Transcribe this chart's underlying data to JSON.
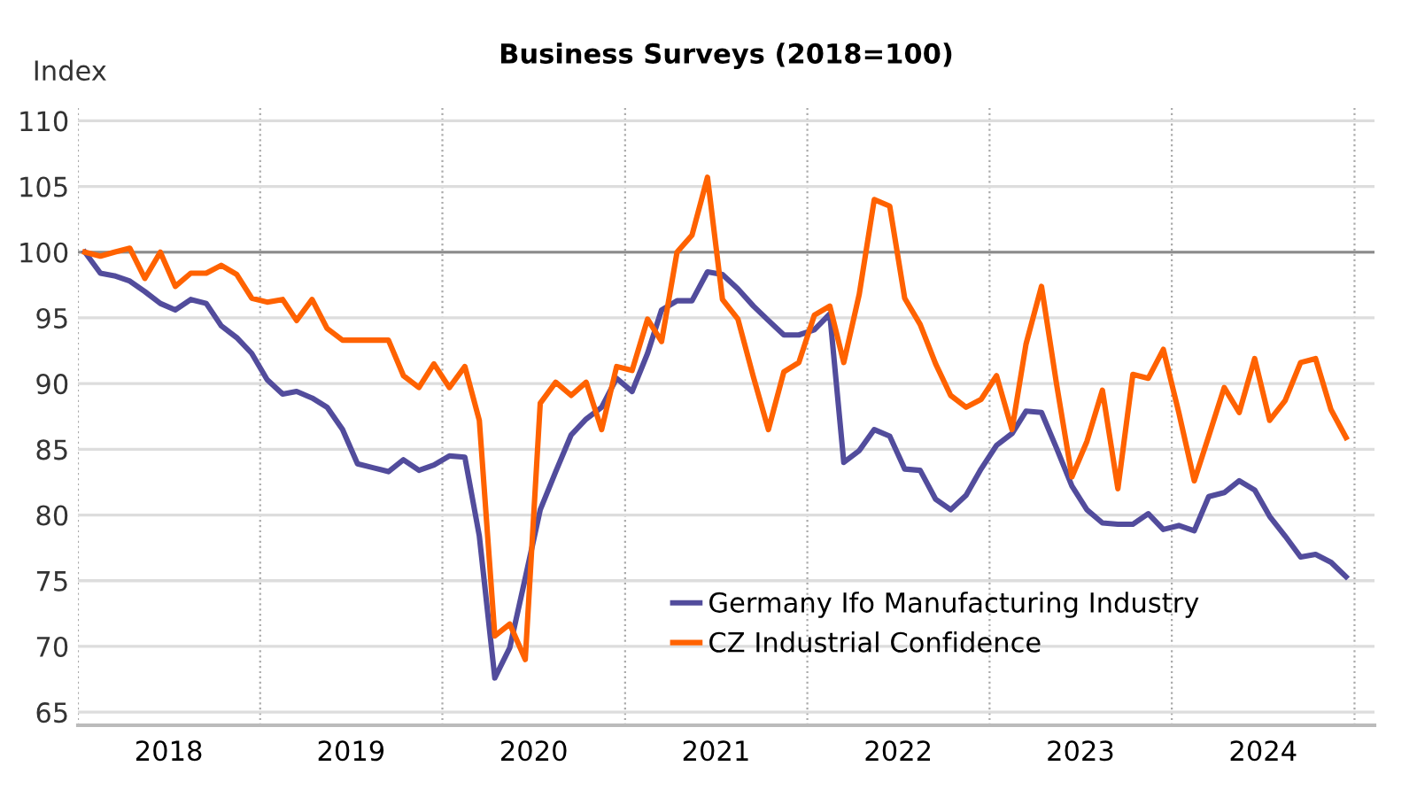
{
  "chart_data": {
    "type": "line",
    "title": "Business Surveys (2018=100)",
    "ylabel": "Index",
    "x": [
      "2018-01-15",
      "2018-02-15",
      "2018-03-15",
      "2018-04-15",
      "2018-05-15",
      "2018-06-15",
      "2018-07-15",
      "2018-08-15",
      "2018-09-15",
      "2018-10-15",
      "2018-11-15",
      "2018-12-15",
      "2019-01-15",
      "2019-02-15",
      "2019-03-15",
      "2019-04-15",
      "2019-05-15",
      "2019-06-15",
      "2019-07-15",
      "2019-08-15",
      "2019-09-15",
      "2019-10-15",
      "2019-11-15",
      "2019-12-15",
      "2020-01-15",
      "2020-02-15",
      "2020-03-15",
      "2020-04-15",
      "2020-05-15",
      "2020-06-15",
      "2020-07-15",
      "2020-08-15",
      "2020-09-15",
      "2020-10-15",
      "2020-11-15",
      "2020-12-15",
      "2021-01-15",
      "2021-02-15",
      "2021-03-15",
      "2021-04-15",
      "2021-05-15",
      "2021-06-15",
      "2021-07-15",
      "2021-08-15",
      "2021-09-15",
      "2021-10-15",
      "2021-11-15",
      "2021-12-15",
      "2022-01-15",
      "2022-02-15",
      "2022-03-15",
      "2022-04-15",
      "2022-05-15",
      "2022-06-15",
      "2022-07-15",
      "2022-08-15",
      "2022-09-15",
      "2022-10-15",
      "2022-11-15",
      "2022-12-15",
      "2023-01-15",
      "2023-02-15",
      "2023-03-15",
      "2023-04-15",
      "2023-05-15",
      "2023-06-15",
      "2023-07-15",
      "2023-08-15",
      "2023-09-15",
      "2023-10-15",
      "2023-11-15",
      "2023-12-15",
      "2024-01-15",
      "2024-02-15",
      "2024-03-15",
      "2024-04-15",
      "2024-05-15",
      "2024-06-15",
      "2024-07-15",
      "2024-08-15",
      "2024-09-15",
      "2024-10-15",
      "2024-11-15",
      "2024-12-15"
    ],
    "series": [
      {
        "name": "Germany Ifo Manufacturing Industry",
        "color": "#524c9c",
        "values": [
          100,
          98.4,
          98.2,
          97.8,
          97.0,
          96.1,
          95.6,
          96.4,
          96.1,
          94.4,
          93.5,
          92.3,
          90.3,
          89.2,
          89.4,
          88.9,
          88.2,
          86.5,
          83.9,
          83.6,
          83.3,
          84.2,
          83.4,
          83.8,
          84.5,
          84.4,
          78.4,
          67.6,
          69.9,
          75.2,
          80.4,
          83.3,
          86.1,
          87.3,
          88.2,
          90.4,
          89.4,
          92.3,
          95.6,
          96.3,
          96.3,
          98.5,
          98.3,
          97.2,
          95.9,
          94.8,
          93.7,
          93.7,
          94.1,
          95.3,
          84.0,
          84.9,
          86.5,
          86.0,
          83.5,
          83.4,
          81.2,
          80.4,
          81.5,
          83.5,
          85.3,
          86.2,
          87.9,
          87.8,
          85.1,
          82.2,
          80.4,
          79.4,
          79.3,
          79.3,
          80.1,
          78.9,
          79.2,
          78.8,
          81.4,
          81.7,
          82.6,
          81.9,
          79.9,
          78.4,
          76.8,
          77.0,
          76.4,
          75.3
        ]
      },
      {
        "name": "CZ Industrial Confidence",
        "color": "#ff6200",
        "values": [
          100,
          99.7,
          100,
          100.3,
          98.0,
          100,
          97.4,
          98.4,
          98.4,
          99.0,
          98.3,
          96.5,
          96.2,
          96.4,
          94.8,
          96.4,
          94.2,
          93.3,
          93.3,
          93.3,
          93.3,
          90.6,
          89.7,
          91.5,
          89.7,
          91.3,
          87.2,
          70.8,
          71.7,
          69.0,
          88.5,
          90.1,
          89.1,
          90.1,
          86.5,
          91.3,
          91.0,
          94.9,
          93.2,
          100,
          101.3,
          105.7,
          96.4,
          94.9,
          90.5,
          86.5,
          90.9,
          91.6,
          95.2,
          95.9,
          91.6,
          96.8,
          104.0,
          103.5,
          96.5,
          94.5,
          91.5,
          89.1,
          88.2,
          88.8,
          90.6,
          86.5,
          93.0,
          97.4,
          90.0,
          82.9,
          85.6,
          89.5,
          82.0,
          90.7,
          90.4,
          92.6,
          87.8,
          82.6,
          86.0,
          89.7,
          87.8,
          91.9,
          87.2,
          88.7,
          91.6,
          91.9,
          88.0,
          85.9
        ]
      }
    ],
    "xlim": [
      "2018-01-01",
      "2025-02-10"
    ],
    "xticks": [
      {
        "value": "2018-01-01",
        "label": null
      },
      {
        "value": "2019-01-01",
        "label": null
      },
      {
        "value": "2020-01-01",
        "label": null
      },
      {
        "value": "2021-01-01",
        "label": null
      },
      {
        "value": "2022-01-01",
        "label": null
      },
      {
        "value": "2023-01-01",
        "label": null
      },
      {
        "value": "2024-01-01",
        "label": null
      },
      {
        "value": "2025-01-01",
        "label": null
      },
      {
        "value": "2018-07-02",
        "label": "2018"
      },
      {
        "value": "2019-07-02",
        "label": "2019"
      },
      {
        "value": "2020-07-02",
        "label": "2020"
      },
      {
        "value": "2021-07-02",
        "label": "2021"
      },
      {
        "value": "2022-07-02",
        "label": "2022"
      },
      {
        "value": "2023-07-02",
        "label": "2023"
      },
      {
        "value": "2024-07-02",
        "label": "2024"
      }
    ],
    "ylim": [
      64,
      111
    ],
    "yticks": [
      65,
      70,
      75,
      80,
      85,
      90,
      95,
      100,
      105,
      110
    ],
    "ref_lines": [
      {
        "axis": "y",
        "value": 100,
        "color": "#8c8c8c"
      }
    ],
    "grid": true,
    "legend": "bottom",
    "line_style": "solid",
    "marker": "none"
  }
}
